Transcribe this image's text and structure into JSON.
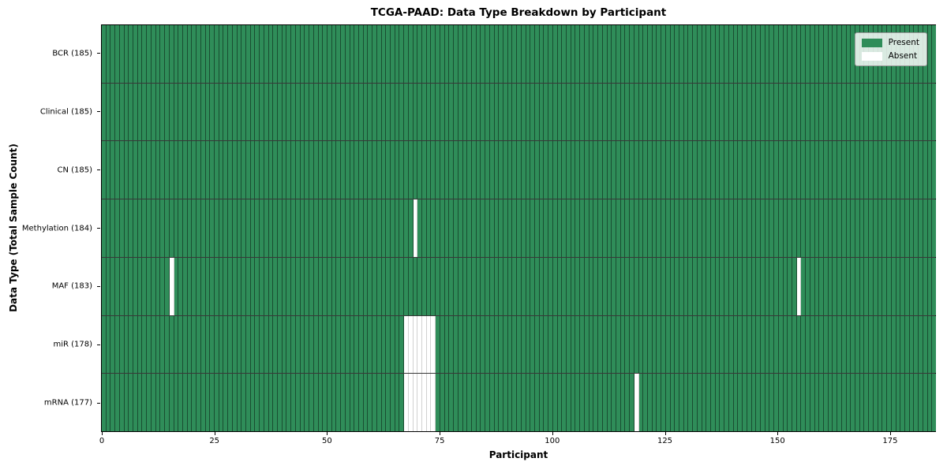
{
  "chart_data": {
    "type": "heatmap",
    "title": "TCGA-PAAD: Data Type Breakdown by Participant",
    "xlabel": "Participant",
    "ylabel": "Data Type (Total Sample Count)",
    "n_participants": 185,
    "x_ticks": [
      0,
      25,
      50,
      75,
      100,
      125,
      150,
      175
    ],
    "xlim": [
      0,
      185
    ],
    "grid": "cell-edges",
    "legend_position": "upper-right",
    "colors": {
      "present": "#2f8d59",
      "absent": "#ffffff"
    },
    "legend": [
      {
        "label": "Present",
        "color": "#2f8d59"
      },
      {
        "label": "Absent",
        "color": "#ffffff"
      }
    ],
    "rows": [
      {
        "label": "BCR (185)",
        "data_type": "BCR",
        "total": 185,
        "missing_participants": []
      },
      {
        "label": "Clinical (185)",
        "data_type": "Clinical",
        "total": 185,
        "missing_participants": []
      },
      {
        "label": "CN (185)",
        "data_type": "CN",
        "total": 185,
        "missing_participants": []
      },
      {
        "label": "Methylation (184)",
        "data_type": "Methylation",
        "total": 184,
        "missing_participants": [
          69
        ]
      },
      {
        "label": "MAF (183)",
        "data_type": "MAF",
        "total": 183,
        "missing_participants": [
          15,
          154
        ]
      },
      {
        "label": "miR (178)",
        "data_type": "miR",
        "total": 178,
        "missing_participants": [
          67,
          68,
          69,
          70,
          71,
          72,
          73
        ]
      },
      {
        "label": "mRNA (177)",
        "data_type": "mRNA",
        "total": 177,
        "missing_participants": [
          67,
          68,
          69,
          70,
          71,
          72,
          73,
          118
        ]
      }
    ]
  }
}
